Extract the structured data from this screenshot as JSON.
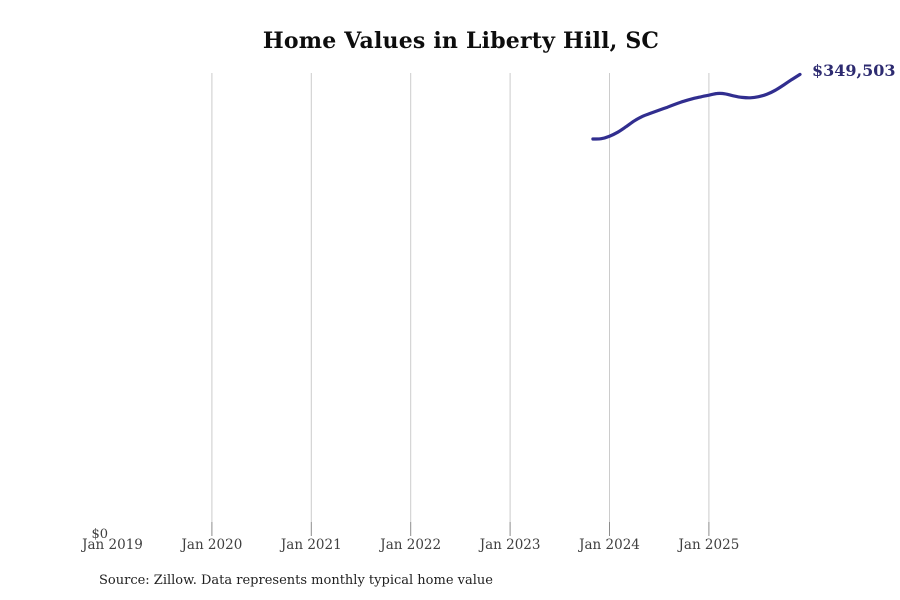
{
  "header": {
    "title": "Home Values in Liberty Hill, SC"
  },
  "footer": {
    "source_note": "Source: Zillow. Data represents monthly typical home value"
  },
  "theme": {
    "background": "#ffffff",
    "line_color": "#312e8f",
    "end_label_color": "#2d2b70",
    "grid_color": "#cccccc",
    "tick_color": "#8c8c8c",
    "axis_text_color": "#3f3f3f",
    "title_color": "#0d0d0d",
    "source_text_color": "#1f1f1f"
  },
  "chart_data": {
    "type": "line",
    "title": "Home Values in Liberty Hill, SC",
    "xlabel": "",
    "ylabel": "",
    "legend": "none",
    "grid": "vertical-only",
    "x_tick_labels": [
      "Jan 2019",
      "Jan 2020",
      "Jan 2021",
      "Jan 2022",
      "Jan 2023",
      "Jan 2024",
      "Jan 2025"
    ],
    "y_tick_labels": [
      "$0"
    ],
    "ylim": [
      0,
      350600
    ],
    "end_annotation": "$349,503",
    "end_value": 349503,
    "x": [
      "Nov 2023",
      "Dec 2023",
      "Jan 2024",
      "Feb 2024",
      "Mar 2024",
      "Apr 2024",
      "May 2024",
      "Jun 2024",
      "Jul 2024",
      "Aug 2024",
      "Sep 2024",
      "Oct 2024",
      "Nov 2024",
      "Dec 2024",
      "Jan 2025",
      "Feb 2025",
      "Mar 2025",
      "Apr 2025",
      "May 2025",
      "Jun 2025",
      "Jul 2025",
      "Aug 2025",
      "Sep 2025",
      "Oct 2025",
      "Nov 2025",
      "Dec 2025"
    ],
    "series": [
      {
        "name": "Monthly typical home value",
        "values": [
          300000,
          300200,
          302100,
          305200,
          309400,
          313900,
          317400,
          319800,
          322100,
          324400,
          326800,
          329000,
          330800,
          332300,
          333600,
          334900,
          334600,
          333000,
          331900,
          331600,
          332400,
          334300,
          337300,
          341300,
          345500,
          349503
        ]
      }
    ]
  }
}
